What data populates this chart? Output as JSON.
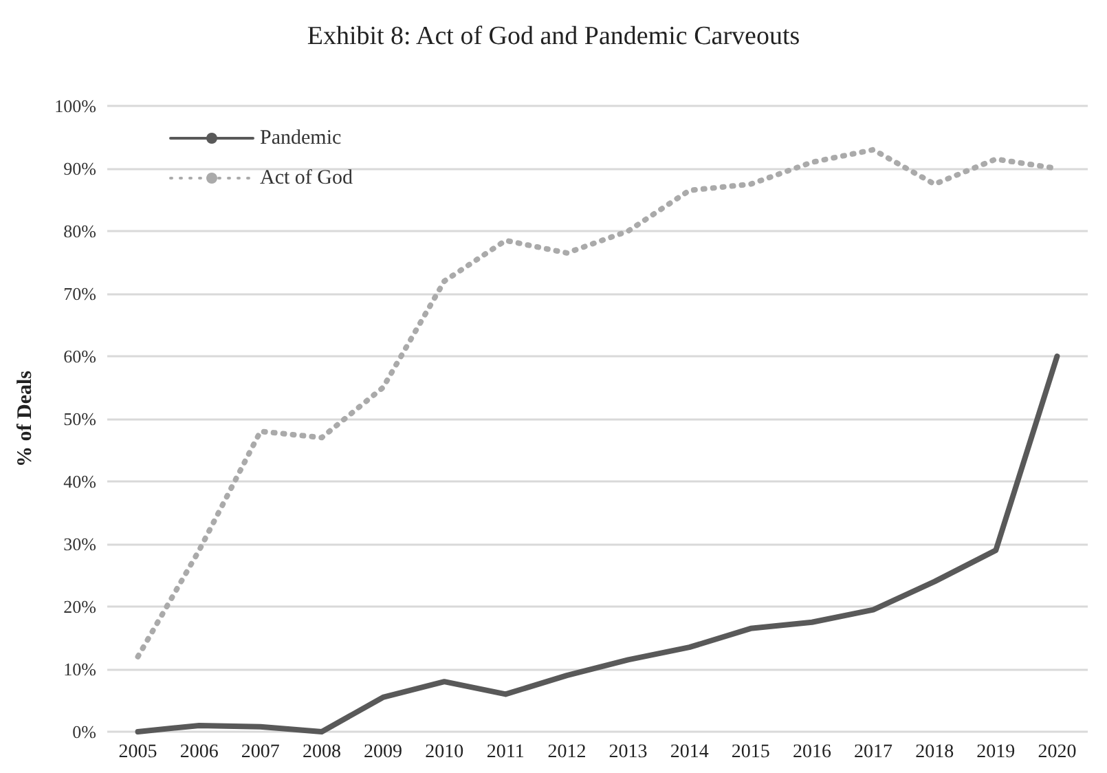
{
  "chart_data": {
    "type": "line",
    "title": "Exhibit 8: Act of God and Pandemic Carveouts",
    "ylabel": "% of Deals",
    "categories": [
      "2005",
      "2006",
      "2007",
      "2008",
      "2009",
      "2010",
      "2011",
      "2012",
      "2013",
      "2014",
      "2015",
      "2016",
      "2017",
      "2018",
      "2019",
      "2020"
    ],
    "series": [
      {
        "name": "Pandemic",
        "color": "#595959",
        "line_style": "solid",
        "values": [
          0,
          1,
          0.8,
          0,
          5.5,
          8,
          6,
          9,
          11.5,
          13.5,
          16.5,
          17.5,
          19.5,
          24,
          29,
          60
        ]
      },
      {
        "name": "Act of God",
        "color": "#aaaaaa",
        "line_style": "dotted",
        "values": [
          12,
          29,
          48,
          47,
          55,
          72,
          78.5,
          76.5,
          80,
          86.5,
          87.5,
          91,
          93,
          87.5,
          91.5,
          90
        ]
      }
    ],
    "ylim": [
      0,
      100
    ],
    "yticks": [
      {
        "value": 0,
        "label": "0%"
      },
      {
        "value": 10,
        "label": "10%"
      },
      {
        "value": 20,
        "label": "20%"
      },
      {
        "value": 30,
        "label": "30%"
      },
      {
        "value": 40,
        "label": "40%"
      },
      {
        "value": 50,
        "label": "50%"
      },
      {
        "value": 60,
        "label": "60%"
      },
      {
        "value": 70,
        "label": "70%"
      },
      {
        "value": 80,
        "label": "80%"
      },
      {
        "value": 90,
        "label": "90%"
      },
      {
        "value": 100,
        "label": "100%"
      }
    ],
    "grid": "y",
    "legend": "top left",
    "marker": "none"
  }
}
